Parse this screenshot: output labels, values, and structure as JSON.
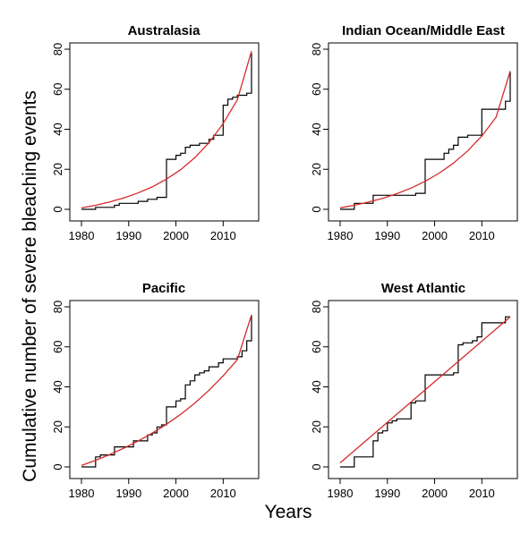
{
  "figure": {
    "ylabel": "Cumulative number of severe bleaching events",
    "xlabel": "Years"
  },
  "chart_data": [
    {
      "type": "line",
      "title": "Australasia",
      "xlim": [
        1980,
        2016
      ],
      "ylim": [
        0,
        80
      ],
      "xticks": [
        1980,
        1990,
        2000,
        2010
      ],
      "yticks": [
        0,
        20,
        40,
        60,
        80
      ],
      "series": [
        {
          "color": "#000000",
          "x": [
            1980,
            1981,
            1982,
            1983,
            1984,
            1985,
            1986,
            1987,
            1988,
            1989,
            1990,
            1991,
            1992,
            1993,
            1994,
            1995,
            1996,
            1997,
            1998,
            1999,
            2000,
            2001,
            2002,
            2003,
            2004,
            2005,
            2006,
            2007,
            2008,
            2009,
            2010,
            2011,
            2012,
            2013,
            2014,
            2015,
            2016
          ],
          "y": [
            0,
            0,
            0,
            1,
            1,
            1,
            1,
            2,
            3,
            3,
            3,
            3,
            4,
            4,
            5,
            5,
            6,
            6,
            25,
            25,
            27,
            28,
            31,
            32,
            32,
            33,
            33,
            35,
            37,
            37,
            52,
            55,
            56,
            57,
            57,
            58,
            78
          ]
        },
        {
          "color": "#d42a2a",
          "fit": "exponential",
          "x": [
            1980,
            1983,
            1986,
            1989,
            1992,
            1995,
            1998,
            2001,
            2004,
            2007,
            2010,
            2013,
            2016
          ],
          "y": [
            0.7,
            2.0,
            3.7,
            5.7,
            8.2,
            11.2,
            15.1,
            19.8,
            25.8,
            33.3,
            42.8,
            54.8,
            79.0
          ]
        }
      ]
    },
    {
      "type": "line",
      "title": "Indian Ocean/Middle East",
      "xlim": [
        1980,
        2016
      ],
      "ylim": [
        0,
        80
      ],
      "xticks": [
        1980,
        1990,
        2000,
        2010
      ],
      "yticks": [
        0,
        20,
        40,
        60,
        80
      ],
      "series": [
        {
          "color": "#000000",
          "x": [
            1980,
            1981,
            1982,
            1983,
            1984,
            1985,
            1986,
            1987,
            1988,
            1989,
            1990,
            1991,
            1992,
            1993,
            1994,
            1995,
            1996,
            1997,
            1998,
            1999,
            2000,
            2001,
            2002,
            2003,
            2004,
            2005,
            2006,
            2007,
            2008,
            2009,
            2010,
            2011,
            2012,
            2013,
            2014,
            2015,
            2016
          ],
          "y": [
            0,
            0,
            0,
            3,
            3,
            3,
            3,
            7,
            7,
            7,
            7,
            7,
            7,
            7,
            7,
            7,
            8,
            8,
            25,
            25,
            25,
            25,
            28,
            30,
            32,
            36,
            36,
            37,
            37,
            37,
            50,
            50,
            50,
            50,
            50,
            54,
            69
          ]
        },
        {
          "color": "#d42a2a",
          "fit": "exponential",
          "x": [
            1980,
            1983,
            1986,
            1989,
            1992,
            1995,
            1998,
            2001,
            2004,
            2007,
            2010,
            2013,
            2016
          ],
          "y": [
            0.7,
            2.0,
            3.6,
            5.5,
            7.8,
            10.6,
            14.0,
            18.1,
            23.1,
            29.2,
            36.6,
            46.0,
            69.0
          ]
        }
      ]
    },
    {
      "type": "line",
      "title": "Pacific",
      "xlim": [
        1980,
        2016
      ],
      "ylim": [
        0,
        80
      ],
      "xticks": [
        1980,
        1990,
        2000,
        2010
      ],
      "yticks": [
        0,
        20,
        40,
        60,
        80
      ],
      "series": [
        {
          "color": "#000000",
          "x": [
            1980,
            1981,
            1982,
            1983,
            1984,
            1985,
            1986,
            1987,
            1988,
            1989,
            1990,
            1991,
            1992,
            1993,
            1994,
            1995,
            1996,
            1997,
            1998,
            1999,
            2000,
            2001,
            2002,
            2003,
            2004,
            2005,
            2006,
            2007,
            2008,
            2009,
            2010,
            2011,
            2012,
            2013,
            2014,
            2015,
            2016
          ],
          "y": [
            0,
            0,
            0,
            5,
            6,
            6,
            6,
            10,
            10,
            10,
            10,
            13,
            13,
            13,
            16,
            17,
            20,
            21,
            30,
            30,
            33,
            34,
            41,
            43,
            46,
            47,
            48,
            50,
            50,
            52,
            54,
            54,
            54,
            55,
            58,
            63,
            76
          ]
        },
        {
          "color": "#d42a2a",
          "fit": "exponential",
          "x": [
            1980,
            1983,
            1986,
            1989,
            1992,
            1995,
            1998,
            2001,
            2004,
            2007,
            2010,
            2013,
            2016
          ],
          "y": [
            0.7,
            3.3,
            6.2,
            9.4,
            12.9,
            16.9,
            21.3,
            26.3,
            31.9,
            38.3,
            45.5,
            53.6,
            76.0
          ]
        }
      ]
    },
    {
      "type": "line",
      "title": "West Atlantic",
      "xlim": [
        1980,
        2016
      ],
      "ylim": [
        0,
        80
      ],
      "xticks": [
        1980,
        1990,
        2000,
        2010
      ],
      "yticks": [
        0,
        20,
        40,
        60,
        80
      ],
      "series": [
        {
          "color": "#000000",
          "x": [
            1980,
            1981,
            1982,
            1983,
            1984,
            1985,
            1986,
            1987,
            1988,
            1989,
            1990,
            1991,
            1992,
            1993,
            1994,
            1995,
            1996,
            1997,
            1998,
            1999,
            2000,
            2001,
            2002,
            2003,
            2004,
            2005,
            2006,
            2007,
            2008,
            2009,
            2010,
            2011,
            2012,
            2013,
            2014,
            2015,
            2016
          ],
          "y": [
            0,
            0,
            0,
            5,
            5,
            5,
            5,
            13,
            17,
            18,
            22,
            23,
            24,
            24,
            24,
            32,
            33,
            33,
            46,
            46,
            46,
            46,
            46,
            46,
            47,
            61,
            62,
            62,
            63,
            65,
            72,
            72,
            72,
            72,
            72,
            75,
            75
          ]
        },
        {
          "color": "#d42a2a",
          "fit": "linear",
          "x": [
            1980,
            2016
          ],
          "y": [
            2.0,
            75.0
          ]
        }
      ]
    }
  ]
}
